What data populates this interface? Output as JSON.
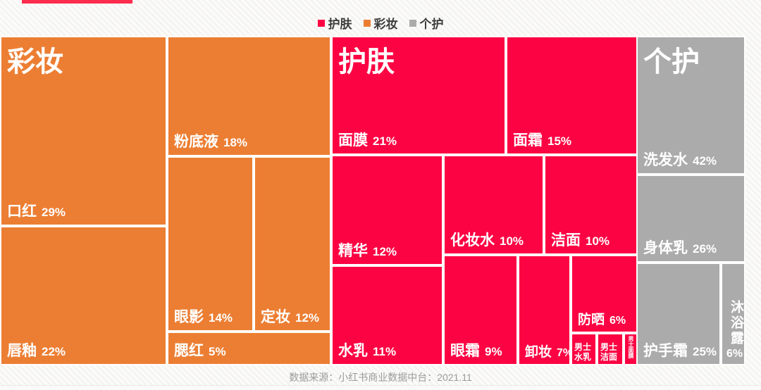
{
  "top_bar": {
    "color": "#FB2C4D"
  },
  "legend": {
    "items": [
      {
        "label": "护肤",
        "color": "#FC0343"
      },
      {
        "label": "彩妆",
        "color": "#EC7E33"
      },
      {
        "label": "个护",
        "color": "#ABABAB"
      }
    ]
  },
  "chart_data": {
    "type": "treemap",
    "legend_position": "top",
    "groups": [
      {
        "name": "彩妆",
        "color": "#EC7E33",
        "items": [
          {
            "name": "口红",
            "value": 29,
            "label": "29%"
          },
          {
            "name": "唇釉",
            "value": 22,
            "label": "22%"
          },
          {
            "name": "粉底液",
            "value": 18,
            "label": "18%"
          },
          {
            "name": "眼影",
            "value": 14,
            "label": "14%"
          },
          {
            "name": "定妆",
            "value": 12,
            "label": "12%"
          },
          {
            "name": "腮红",
            "value": 5,
            "label": "5%"
          }
        ]
      },
      {
        "name": "护肤",
        "color": "#FC0343",
        "items": [
          {
            "name": "面膜",
            "value": 21,
            "label": "21%"
          },
          {
            "name": "面霜",
            "value": 15,
            "label": "15%"
          },
          {
            "name": "精华",
            "value": 12,
            "label": "12%"
          },
          {
            "name": "化妆水",
            "value": 10,
            "label": "10%"
          },
          {
            "name": "洁面",
            "value": 10,
            "label": "10%"
          },
          {
            "name": "水乳",
            "value": 11,
            "label": "11%"
          },
          {
            "name": "眼霜",
            "value": 9,
            "label": "9%"
          },
          {
            "name": "卸妆",
            "value": 7,
            "label": "7%"
          },
          {
            "name": "防晒",
            "value": 6,
            "label": "6%"
          },
          {
            "name": "男士水乳",
            "value": null,
            "label": ""
          },
          {
            "name": "男士洁面",
            "value": null,
            "label": ""
          },
          {
            "name": "男士面膜",
            "value": null,
            "label": ""
          }
        ]
      },
      {
        "name": "个护",
        "color": "#ABABAB",
        "items": [
          {
            "name": "洗发水",
            "value": 42,
            "label": "42%"
          },
          {
            "name": "身体乳",
            "value": 26,
            "label": "26%"
          },
          {
            "name": "护手霜",
            "value": 25,
            "label": "25%"
          },
          {
            "name": "沐浴露",
            "value": 6,
            "label": "6%"
          }
        ]
      }
    ]
  },
  "footer": {
    "source": "数据来源：小红书商业数据中台：2021.11"
  }
}
